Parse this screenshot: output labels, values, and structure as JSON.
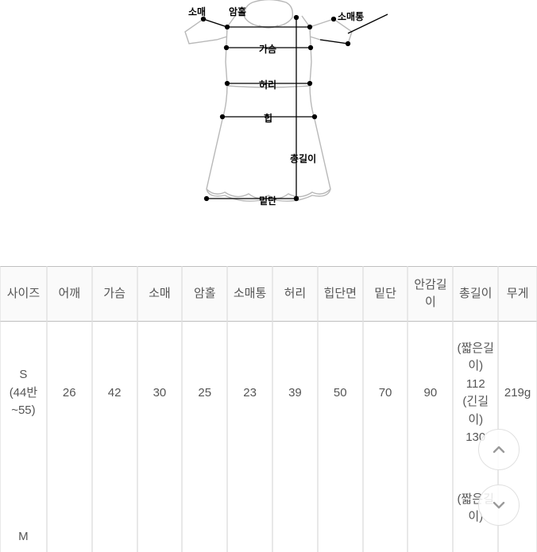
{
  "diagram": {
    "labels": {
      "somae": "소매",
      "amhole": "암홀",
      "somaetong": "소매통",
      "gaseum": "가슴",
      "heori": "허리",
      "hip": "힙",
      "chonggiri": "총길이",
      "mitdan": "밑단"
    },
    "outline_color": "#b8b8b8",
    "line_color": "#000000",
    "dot_color": "#000000",
    "label_fontsize": 12
  },
  "table": {
    "columns": [
      "사이즈",
      "어깨",
      "가슴",
      "소매",
      "암홀",
      "소매통",
      "허리",
      "힙단면",
      "밑단",
      "안감길이",
      "총길이",
      "무게"
    ],
    "rows": [
      {
        "size": "S\n(44반~55)",
        "cells": [
          "26",
          "42",
          "30",
          "25",
          "23",
          "39",
          "50",
          "70",
          "90",
          "(짧은길이)\n112\n(긴길이)\n130",
          "219g"
        ]
      },
      {
        "size": "M",
        "cells": [
          "",
          "",
          "",
          "",
          "",
          "",
          "",
          "",
          "",
          "(짧은길이)",
          ""
        ]
      }
    ],
    "header_fontsize": 15,
    "cell_fontsize": 15,
    "text_color": "#555555",
    "border_color": "#e8e8e8",
    "header_border_color": "#bfbfbf"
  },
  "fab": {
    "up_icon": "chevron-up",
    "down_icon": "chevron-down"
  }
}
